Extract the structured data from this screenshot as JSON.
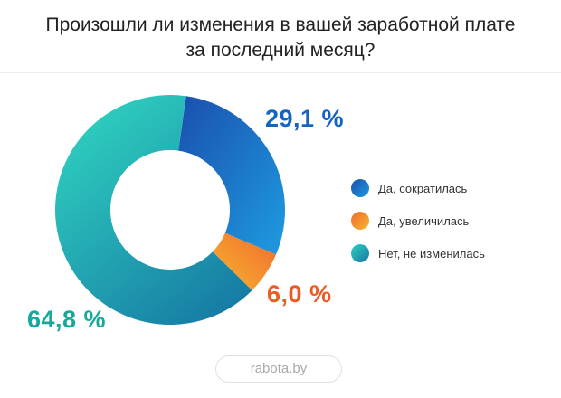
{
  "chart_data": {
    "type": "pie",
    "title_lines": [
      "Произошли ли изменения в вашей заработной плате",
      "за последний месяц?"
    ],
    "slices": [
      {
        "label": "Да, сократилась",
        "value": 29.1,
        "display": "29,1 %",
        "color_start": "#1a4fae",
        "color_end": "#1e9be0",
        "label_color": "#1565c0"
      },
      {
        "label": "Да, увеличилась",
        "value": 6.0,
        "display": "6,0 %",
        "color_start": "#f16a2c",
        "color_end": "#f7b733",
        "label_color": "#ee5a24"
      },
      {
        "label": "Нет, не изменилась",
        "value": 64.8,
        "display": "64,8 %",
        "color_start": "#2fd1bf",
        "color_end": "#1577a3",
        "label_color": "#17a89b"
      }
    ]
  },
  "footer": {
    "source": "rabota.by"
  }
}
